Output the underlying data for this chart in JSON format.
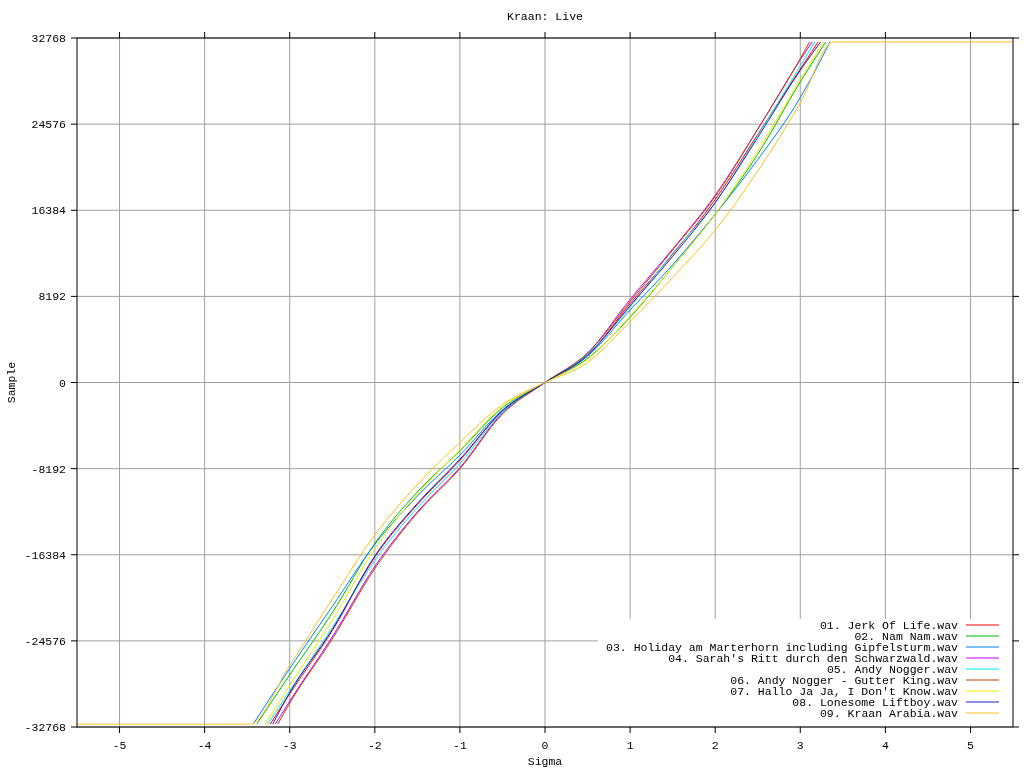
{
  "chart_data": {
    "type": "line",
    "title": "Kraan: Live",
    "xlabel": "Sigma",
    "ylabel": "Sample",
    "xlim": [
      -5.5,
      5.5
    ],
    "ylim": [
      -32768,
      32768
    ],
    "xticks": [
      -5,
      -4,
      -3,
      -2,
      -1,
      0,
      1,
      2,
      3,
      4,
      5
    ],
    "yticks": [
      -32768,
      -24576,
      -16384,
      -8192,
      0,
      8192,
      16384,
      24576,
      32768
    ],
    "grid": true,
    "legend": "bottom right",
    "line_style": "solid",
    "series": [
      {
        "name": "01. Jerk Of Life.wav",
        "color": "#ff0000",
        "x": [
          -3.23,
          -3,
          -2.5,
          -2,
          -1.5,
          -1,
          -0.5,
          0,
          0.5,
          1,
          1.5,
          2,
          2.5,
          3,
          3.21
        ],
        "values": [
          -32500,
          -29600,
          -23600,
          -16600,
          -11600,
          -7400,
          -2700,
          0,
          2600,
          7500,
          12200,
          17400,
          23600,
          29800,
          32400
        ]
      },
      {
        "name": "02. Nam Nam.wav",
        "color": "#00c000",
        "x": [
          -3.39,
          -3,
          -2.5,
          -2,
          -1.5,
          -1,
          -0.5,
          0,
          0.5,
          1,
          1.5,
          2,
          2.5,
          3,
          3.3
        ],
        "values": [
          -32500,
          -27800,
          -21900,
          -15300,
          -10400,
          -6500,
          -2400,
          0,
          2300,
          6200,
          11000,
          16000,
          21700,
          28600,
          32400
        ]
      },
      {
        "name": "03. Holiday am Marterhorn including Gipfelsturm.wav",
        "color": "#0080ff",
        "x": [
          -3.43,
          -3,
          -2.5,
          -2,
          -1.5,
          -1,
          -0.5,
          0,
          0.5,
          1,
          1.5,
          2,
          2.5,
          3,
          3.35
        ],
        "values": [
          -32500,
          -27200,
          -21300,
          -15400,
          -10800,
          -6900,
          -2600,
          0,
          2500,
          6900,
          11200,
          16000,
          21200,
          27100,
          32400
        ]
      },
      {
        "name": "04. Sarah's Ritt durch den Schwarzwald.wav",
        "color": "#c000ff",
        "x": [
          -3.17,
          -3,
          -2.5,
          -2,
          -1.5,
          -1,
          -0.5,
          0,
          0.5,
          1,
          1.5,
          2,
          2.5,
          3,
          3.14
        ],
        "values": [
          -32500,
          -30300,
          -24200,
          -17500,
          -12300,
          -8100,
          -2900,
          0,
          2800,
          7900,
          12700,
          17800,
          24100,
          30700,
          32400
        ]
      },
      {
        "name": "05. Andy Nogger.wav",
        "color": "#00eeee",
        "x": [
          -3.26,
          -3,
          -2.5,
          -2,
          -1.5,
          -1,
          -0.5,
          0,
          0.5,
          1,
          1.5,
          2,
          2.5,
          3,
          3.17
        ],
        "values": [
          -32500,
          -29300,
          -23300,
          -16900,
          -11900,
          -7700,
          -2800,
          0,
          2700,
          7200,
          12300,
          17100,
          23500,
          30100,
          32400
        ]
      },
      {
        "name": "06. Andy Nogger - Gutter King.wav",
        "color": "#c04000",
        "x": [
          -3.14,
          -3,
          -2.5,
          -2,
          -1.5,
          -1,
          -0.5,
          0,
          0.5,
          1,
          1.5,
          2,
          2.5,
          3,
          3.11
        ],
        "values": [
          -32500,
          -30500,
          -24400,
          -17700,
          -12400,
          -8200,
          -3000,
          0,
          2800,
          7700,
          12600,
          17700,
          24100,
          30800,
          32400
        ]
      },
      {
        "name": "07. Hallo Ja Ja, I Don't Know.wav",
        "color": "#eeee00",
        "x": [
          -3.29,
          -3,
          -2.5,
          -2,
          -1.5,
          -1,
          -0.5,
          0,
          0.5,
          1,
          1.5,
          2,
          2.5,
          3,
          3.27
        ],
        "values": [
          -32500,
          -28800,
          -22600,
          -15800,
          -10600,
          -6400,
          -2300,
          0,
          2200,
          6300,
          11000,
          16000,
          22000,
          28800,
          32400
        ]
      },
      {
        "name": "08. Lonesome Liftboy.wav",
        "color": "#2020c0",
        "x": [
          -3.2,
          -3,
          -2.5,
          -2,
          -1.5,
          -1,
          -0.5,
          0,
          0.5,
          1,
          1.5,
          2,
          2.5,
          3,
          3.24
        ],
        "values": [
          -32500,
          -29500,
          -23500,
          -16500,
          -11500,
          -7300,
          -2700,
          0,
          2600,
          7300,
          12000,
          17100,
          23300,
          29700,
          32400
        ]
      },
      {
        "name": "09. Kraan Arabia.wav",
        "color": "#ffc020",
        "x": [
          -5.5,
          -3.47,
          -3,
          -2.5,
          -2,
          -1.5,
          -1,
          -0.5,
          0,
          0.5,
          1,
          1.5,
          2,
          2.5,
          3,
          3.39,
          5.5
        ],
        "values": [
          -32500,
          -32500,
          -26900,
          -20600,
          -14500,
          -9700,
          -5700,
          -2100,
          0,
          1900,
          5800,
          10000,
          14500,
          20100,
          26600,
          32400,
          32400
        ]
      }
    ]
  }
}
